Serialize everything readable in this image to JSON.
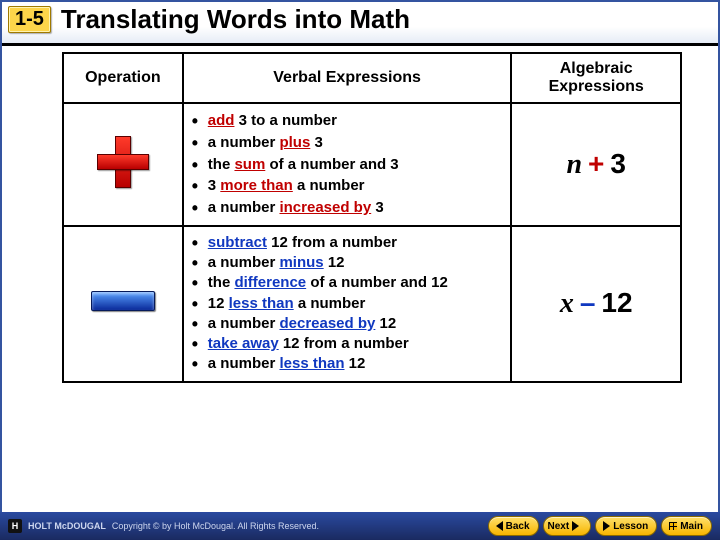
{
  "lesson_number": "1-5",
  "title": "Translating Words into Math",
  "table": {
    "headers": [
      "Operation",
      "Verbal Expressions",
      "Algebraic Expressions"
    ],
    "rows": [
      {
        "operation": "plus",
        "keyword_color": "#c00000",
        "algebraic": {
          "var": "n",
          "op": "+",
          "num": "3"
        },
        "items": [
          [
            {
              "t": "add",
              "k": true
            },
            {
              "t": " 3 to a number"
            }
          ],
          [
            {
              "t": "a number "
            },
            {
              "t": "plus",
              "k": true
            },
            {
              "t": " 3"
            }
          ],
          [
            {
              "t": "the "
            },
            {
              "t": "sum",
              "k": true
            },
            {
              "t": " of a number and 3"
            }
          ],
          [
            {
              "t": "3 "
            },
            {
              "t": "more than",
              "k": true
            },
            {
              "t": " a number"
            }
          ],
          [
            {
              "t": "a number "
            },
            {
              "t": "increased by",
              "k": true
            },
            {
              "t": " 3"
            }
          ]
        ]
      },
      {
        "operation": "minus",
        "keyword_color": "#1038c0",
        "algebraic": {
          "var": "x",
          "op": "–",
          "num": "12"
        },
        "items": [
          [
            {
              "t": "subtract",
              "k": true
            },
            {
              "t": " 12 from a number"
            }
          ],
          [
            {
              "t": "a number "
            },
            {
              "t": "minus",
              "k": true
            },
            {
              "t": " 12"
            }
          ],
          [
            {
              "t": "the "
            },
            {
              "t": "difference",
              "k": true
            },
            {
              "t": " of a number and 12"
            }
          ],
          [
            {
              "t": "12 "
            },
            {
              "t": "less than",
              "k": true
            },
            {
              "t": " a number"
            }
          ],
          [
            {
              "t": "a number "
            },
            {
              "t": "decreased by",
              "k": true
            },
            {
              "t": " 12"
            }
          ],
          [
            {
              "t": "take away",
              "k": true
            },
            {
              "t": " 12 from a number"
            }
          ],
          [
            {
              "t": "a number "
            },
            {
              "t": "less than",
              "k": true
            },
            {
              "t": " 12"
            }
          ]
        ]
      }
    ]
  },
  "footer": {
    "publisher": "HOLT McDOUGAL",
    "copyright": "Copyright © by Holt McDougal. All Rights Reserved.",
    "nav": {
      "back": "Back",
      "next": "Next",
      "lesson": "Lesson",
      "main": "Main"
    }
  }
}
